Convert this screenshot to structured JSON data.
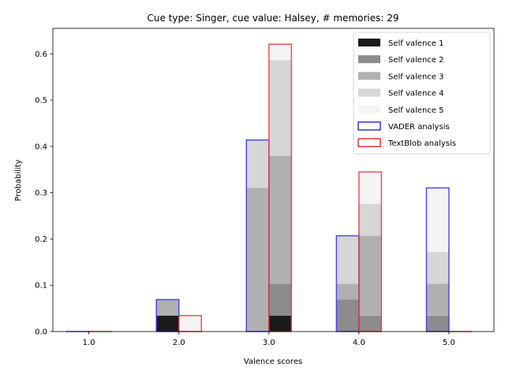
{
  "chart_data": {
    "type": "bar",
    "title": "Cue type: Singer, cue value: Halsey, # memories: 29",
    "xlabel": "Valence scores",
    "ylabel": "Probability",
    "categories": [
      "1.0",
      "2.0",
      "3.0",
      "4.0",
      "5.0"
    ],
    "xlim": [
      0.6,
      5.5
    ],
    "ylim": [
      0.0,
      0.655
    ],
    "yticks": [
      "0.0",
      "0.1",
      "0.2",
      "0.3",
      "0.4",
      "0.5",
      "0.6"
    ],
    "grid": false,
    "legend_position": "upper right",
    "stacked_series": [
      {
        "name": "Self valence 1",
        "color": "#1a1a1a",
        "left_bars": [
          0.0,
          0.0345,
          0.0,
          0.0,
          0.0
        ],
        "right_bars": [
          0.0,
          0.0,
          0.0345,
          0.0,
          0.0
        ]
      },
      {
        "name": "Self valence 2",
        "color": "#8c8c8c",
        "left_bars": [
          0.0,
          0.0,
          0.0,
          0.069,
          0.0345
        ],
        "right_bars": [
          0.0,
          0.0,
          0.069,
          0.0345,
          0.0
        ]
      },
      {
        "name": "Self valence 3",
        "color": "#b0b0b0",
        "left_bars": [
          0.0,
          0.0345,
          0.3103,
          0.0345,
          0.069
        ],
        "right_bars": [
          0.0,
          0.0,
          0.2759,
          0.1724,
          0.0
        ]
      },
      {
        "name": "Self valence 4",
        "color": "#d6d6d6",
        "left_bars": [
          0.0,
          0.0,
          0.1034,
          0.1034,
          0.069
        ],
        "right_bars": [
          0.0,
          0.0,
          0.2069,
          0.069,
          0.0
        ]
      },
      {
        "name": "Self valence 5",
        "color": "#f4f4f4",
        "left_bars": [
          0.0,
          0.0,
          0.0,
          0.0,
          0.1379
        ],
        "right_bars": [
          0.0,
          0.0345,
          0.0345,
          0.069,
          0.0
        ]
      }
    ],
    "outline_series": [
      {
        "name": "VADER analysis",
        "color": "#3333dd",
        "side": "left",
        "values": [
          0.0,
          0.069,
          0.4138,
          0.2069,
          0.3103
        ]
      },
      {
        "name": "TextBlob analysis",
        "color": "#ee3333",
        "side": "right",
        "values": [
          0.0,
          0.0345,
          0.6207,
          0.3448,
          0.0
        ]
      }
    ]
  }
}
